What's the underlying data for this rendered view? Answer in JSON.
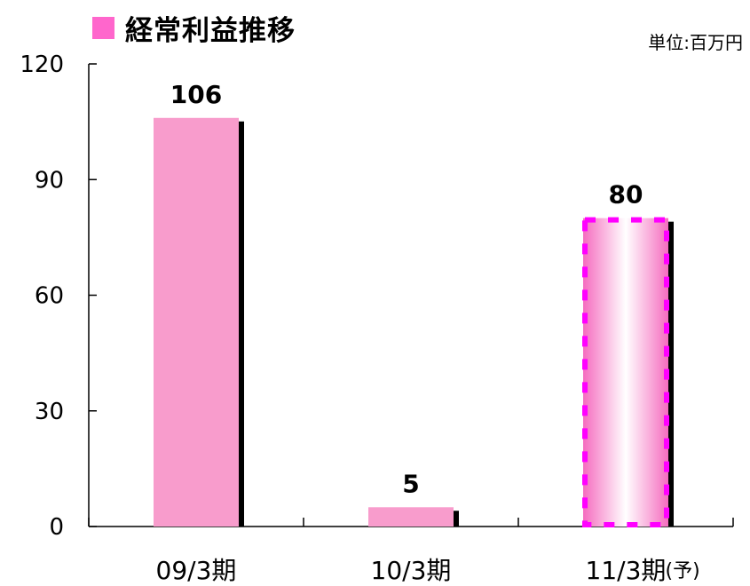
{
  "chart_data": {
    "type": "bar",
    "title": "経常利益推移",
    "unit": "単位:百万円",
    "categories": [
      "09/3期",
      "10/3期",
      "11/3期"
    ],
    "category_suffixes": [
      "",
      "",
      "(予)"
    ],
    "values": [
      106,
      5,
      80
    ],
    "data_labels": [
      "106",
      "5",
      "80"
    ],
    "forecast": [
      false,
      false,
      true
    ],
    "ylim": [
      0,
      120
    ],
    "yticks": [
      0,
      30,
      60,
      90,
      120
    ],
    "grid": false,
    "xlabel": "",
    "ylabel": "",
    "colors": {
      "legend": "#ff66cc",
      "bar": "#f89ccc",
      "shadow": "#000000",
      "forecast_border": "#ff00ff",
      "forecast_edge": "#f56cbf",
      "forecast_center": "#ffffff"
    }
  }
}
